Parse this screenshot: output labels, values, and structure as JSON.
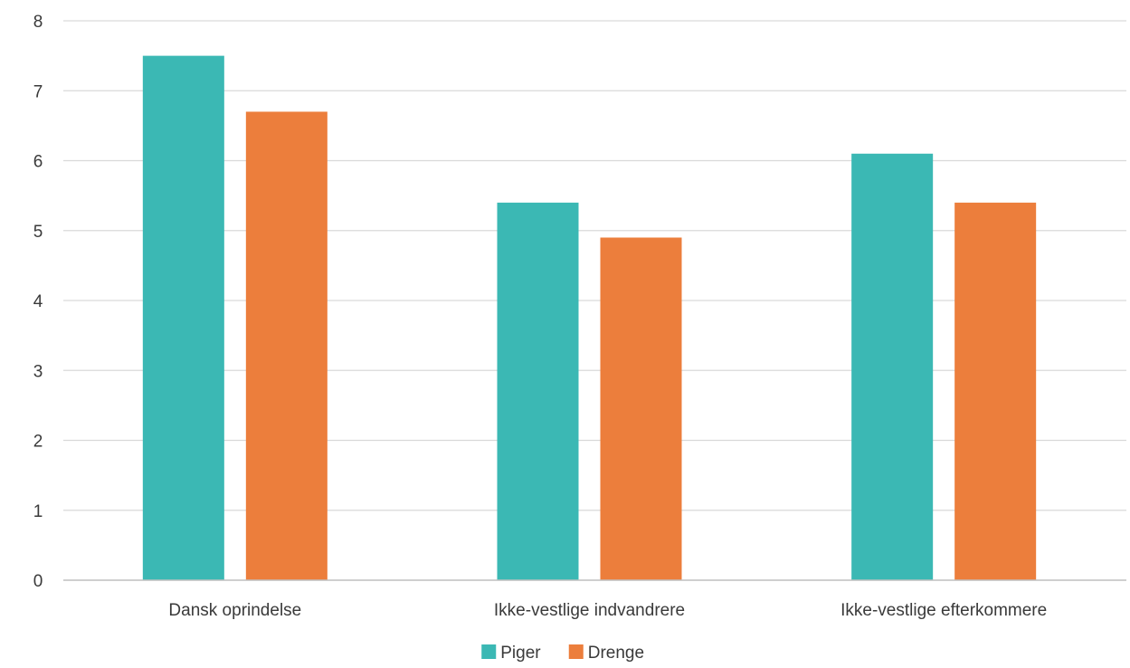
{
  "chart_data": {
    "type": "bar",
    "title": "",
    "xlabel": "",
    "ylabel": "",
    "categories": [
      "Dansk oprindelse",
      "Ikke-vestlige indvandrere",
      "Ikke-vestlige efterkommere"
    ],
    "series": [
      {
        "name": "Piger",
        "color": "#3bb8b4",
        "values": [
          7.5,
          5.4,
          6.1
        ]
      },
      {
        "name": "Drenge",
        "color": "#ec7e3c",
        "values": [
          6.7,
          4.9,
          5.4
        ]
      }
    ],
    "ylim": [
      0,
      8
    ],
    "yticks": [
      0,
      1,
      2,
      3,
      4,
      5,
      6,
      7,
      8
    ],
    "grid": true,
    "legend": "bottom-center"
  }
}
